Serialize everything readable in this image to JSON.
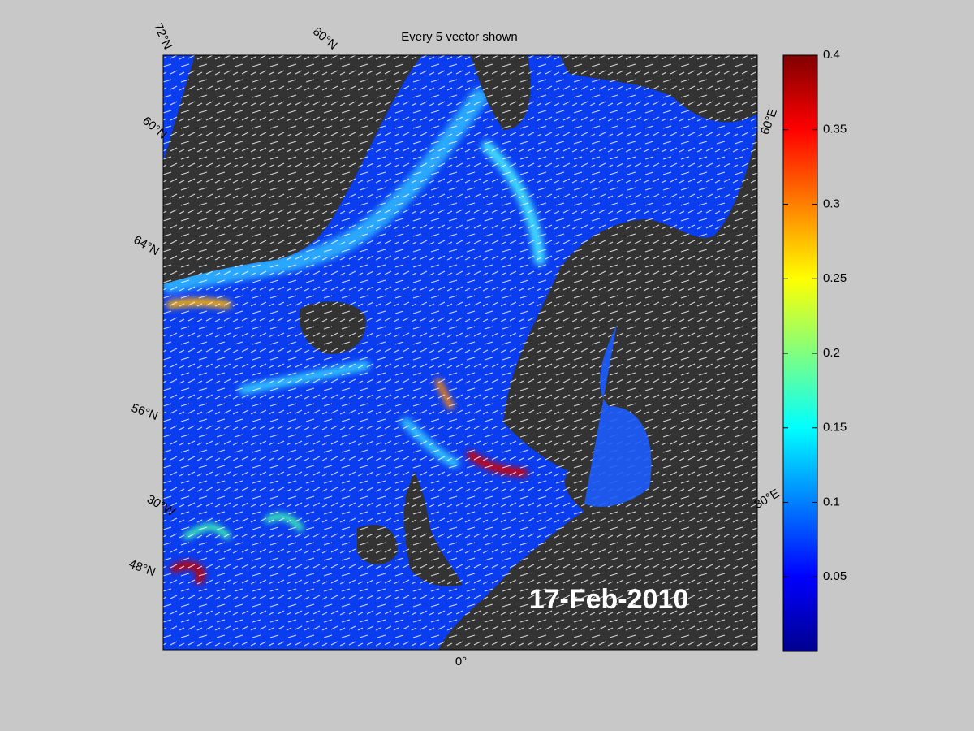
{
  "title": "Every 5 vector shown",
  "date_label": "17-Feb-2010",
  "map_labels": [
    "72°N",
    "80°N",
    "60°N",
    "64°N",
    "56°N",
    "30°W",
    "48°N",
    "0°",
    "60°E",
    "30°E"
  ],
  "colorbar": {
    "ylim": [
      0,
      0.4
    ],
    "yticks": [
      0.05,
      0.1,
      0.15,
      0.2,
      0.25,
      0.3,
      0.35,
      0.4
    ]
  }
}
